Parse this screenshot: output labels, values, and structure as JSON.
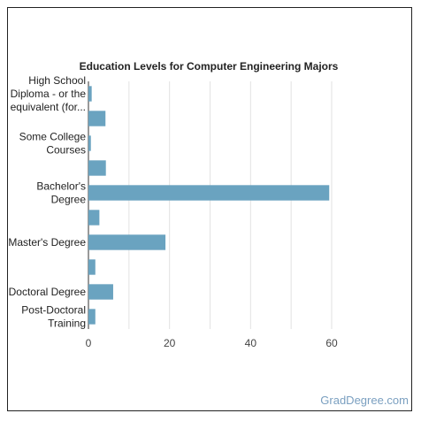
{
  "chart_data": {
    "type": "bar",
    "orientation": "horizontal",
    "title": "Education Levels for Computer Engineering Majors",
    "xlabel": "",
    "ylabel": "",
    "xlim": [
      0,
      60
    ],
    "xticks": [
      0,
      20,
      40,
      60
    ],
    "grid": "vertical",
    "legend": "none",
    "bar_color": "#6aa3c0",
    "categories": [
      "High School Diploma - or the equivalent (for example: GED)",
      "",
      "Some College Courses",
      "",
      "Bachelor's Degree",
      "",
      "Master's Degree",
      "",
      "Doctoral Degree",
      "Post-Doctoral Training"
    ],
    "category_labels": [
      [
        "High School",
        "Diploma - or the",
        "equivalent (for..."
      ],
      [],
      [
        "Some College",
        "Courses"
      ],
      [],
      [
        "Bachelor's",
        "Degree"
      ],
      [],
      [
        "Master's Degree"
      ],
      [],
      [
        "Doctoral Degree"
      ],
      [
        "Post-Doctoral",
        "Training"
      ]
    ],
    "values": [
      0.8,
      4.2,
      0.6,
      4.3,
      59.4,
      2.7,
      19.0,
      1.7,
      6.1,
      1.7
    ]
  },
  "watermark": "GradDegree.com"
}
